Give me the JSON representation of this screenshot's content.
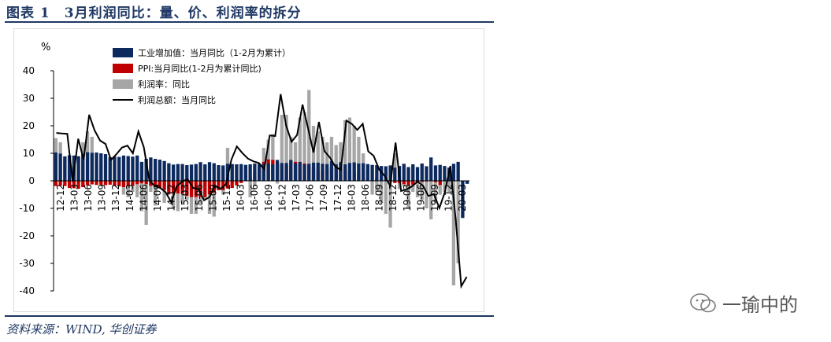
{
  "title": "图表 1　3月利润同比：量、价、利润率的拆分",
  "source": "资料来源：WIND, 华创证券",
  "watermark": "一瑜中的",
  "chart_data": {
    "type": "bar",
    "unit": "%",
    "ylim": [
      -40,
      40
    ],
    "yticks": [
      40,
      30,
      20,
      10,
      0,
      -10,
      -20,
      -30,
      -40
    ],
    "xtick_labels": [
      "12-12",
      "13-03",
      "13-06",
      "13-09",
      "13-12",
      "14-03",
      "14-06",
      "14-09",
      "14-12",
      "15-03",
      "15-06",
      "15-09",
      "15-12",
      "16-03",
      "16-06",
      "16-09",
      "16-12",
      "17-03",
      "17-06",
      "17-09",
      "17-12",
      "18-03",
      "18-06",
      "18-09",
      "18-12",
      "19-03",
      "19-06",
      "19-09",
      "19-12",
      "20-03"
    ],
    "legend": [
      {
        "name": "工业增加值：当月同比（1-2月为累计）",
        "color": "#0d2a5f",
        "kind": "bar"
      },
      {
        "name": "PPI:当月同比(1-2月为累计同比)",
        "color": "#c00000",
        "kind": "bar"
      },
      {
        "name": "利润率：同比",
        "color": "#a6a6a6",
        "kind": "bar"
      },
      {
        "name": "利润总额：当月同比",
        "color": "#000000",
        "kind": "line"
      }
    ],
    "series": [
      {
        "name": "工业增加值：当月同比（1-2月为累计）",
        "values": [
          10.3,
          9.9,
          8.9,
          9.3,
          9.2,
          8.9,
          9.7,
          10.4,
          10.2,
          10.3,
          10,
          9.7,
          8.6,
          8.8,
          8.7,
          9.2,
          9,
          8.8,
          9.2,
          6.9,
          8,
          8.5,
          8.0,
          7.7,
          7.2,
          6.4,
          5.9,
          6.1,
          6.1,
          5.7,
          5.9,
          6.1,
          6.8,
          6,
          6.8,
          6.4,
          5.7,
          5.6,
          6.2,
          6.1,
          6.0,
          6.1,
          5.8,
          6,
          6.3,
          6.2,
          6.2,
          6.3,
          6.0,
          7.6,
          6.5,
          6.5,
          7.6,
          6.4,
          6.8,
          6.0,
          6.2,
          6.6,
          6.6,
          6.2,
          6.1,
          7.2,
          6,
          6.8,
          6.0,
          6.5,
          6.7,
          6.3,
          6.4,
          6.1,
          5.8,
          5.7,
          5.4,
          5.3,
          5.6,
          4.8,
          5.4,
          6.2,
          5.0,
          6.0,
          5.0,
          6.3,
          5.3,
          8.5,
          5.6,
          5.8,
          5.4,
          4.8,
          6.2,
          6.9,
          -13.5,
          -1.1
        ],
        "color": "#0d2a5f"
      },
      {
        "name": "PPI:当月同比(1-2月为累计同比)",
        "values": [
          -1.9,
          -1.8,
          -1.9,
          -2.6,
          -2.7,
          -2.9,
          -2.3,
          -1.6,
          -1.3,
          -1.5,
          -1.4,
          -1.6,
          -1.4,
          -1.9,
          -2.0,
          -2.3,
          -1.9,
          -1.8,
          -1.2,
          -0.9,
          -1.2,
          -1.8,
          -2.2,
          -2.7,
          -3.3,
          -4.8,
          -4.6,
          -4.6,
          -4.6,
          -5.4,
          -5.9,
          -5.9,
          -5.9,
          -5.9,
          -4.9,
          -4.3,
          -3.4,
          -3.4,
          -2.8,
          -2.6,
          -1.7,
          -0.8,
          0.1,
          1.2,
          3.3,
          5.5,
          6.9,
          7.8,
          7.6,
          6.4,
          5.5,
          5.5,
          6.3,
          6.9,
          6.9,
          6.3,
          5.8,
          4.9,
          3.7,
          3.7,
          4.1,
          4.7,
          4.6,
          4.1,
          4.1,
          3.6,
          3.3,
          2.7,
          0.9,
          0.1,
          0.4,
          0.9,
          0.6,
          0.3,
          -0.3,
          -0.8,
          -0.8,
          -1.2,
          -1.6,
          -1.4,
          -0.5,
          -0.4,
          -0.2,
          0,
          -0.5,
          -1.5
        ],
        "color": "#c00000"
      },
      {
        "name": "利润率：同比",
        "values": [
          15.5,
          14,
          8,
          6,
          5.5,
          9,
          14,
          18,
          16,
          7,
          6,
          -1,
          7,
          9,
          -2,
          -5,
          -6,
          -4,
          -6,
          -11,
          -16,
          -4,
          -9,
          -2,
          -8,
          -5,
          -10,
          -11,
          -8,
          -7,
          -12,
          -12,
          -9,
          -7,
          -12,
          -13,
          4,
          -5,
          12,
          6,
          6,
          6,
          5,
          -6,
          -2,
          4,
          12,
          15,
          17,
          -1,
          24,
          24,
          16,
          14,
          23,
          25,
          33,
          20,
          18,
          16,
          14,
          16,
          13,
          14,
          22,
          23,
          20,
          16,
          10,
          4,
          -5,
          -4,
          -8,
          -12,
          -17,
          10,
          -3,
          -2,
          -10,
          -4,
          -6,
          -7,
          -10,
          -14,
          -8,
          -5,
          -4,
          -4,
          -38.0,
          -30.0
        ],
        "color": "#a6a6a6"
      },
      {
        "name": "利润总额：当月同比",
        "values": [
          17.4,
          17.2,
          17.1,
          -0.3,
          15.3,
          7.7,
          24.0,
          18.3,
          14.6,
          13.4,
          7.6,
          9.7,
          12.1,
          12.8,
          10.0,
          17.9,
          12.2,
          0.2,
          -1.9,
          -2.6,
          -4.2,
          -7.8,
          -2.0,
          -0.3,
          0.6,
          -2.6,
          -3.1,
          -7.1,
          -5.9,
          -1.7,
          -2.9,
          -1.3,
          7.7,
          12.5,
          10.1,
          8.1,
          7.1,
          6.5,
          4.3,
          16.5,
          16.3,
          31.5,
          20.0,
          14.2,
          16.7,
          27.7,
          19.1,
          10.3,
          21.4,
          10.8,
          8.5,
          5.1,
          4.0,
          21.9,
          20.7,
          18.5,
          20.7,
          10.7,
          9.1,
          4.1,
          1.8,
          -1.8,
          13.9,
          -3.7,
          -3.1,
          -2.0,
          -0.3,
          -1.7,
          -5.5,
          -4.8,
          -9.9,
          -4.2,
          5.4,
          -14.2,
          -38.3,
          -34.9
        ],
        "color": "#000000"
      }
    ]
  }
}
